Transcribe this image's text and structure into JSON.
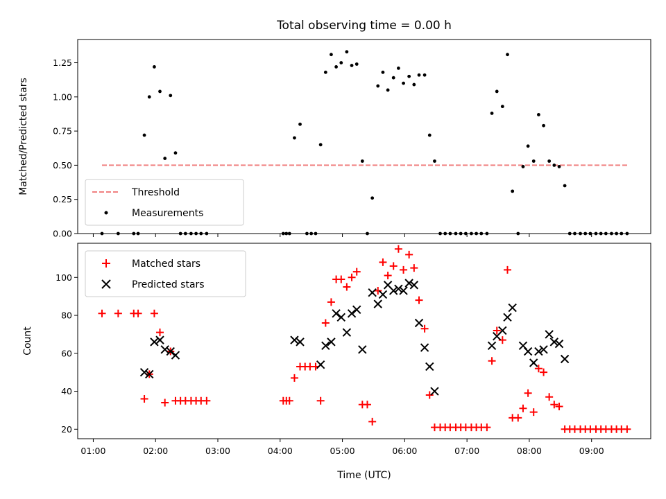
{
  "chart_data": [
    {
      "type": "scatter",
      "title": "Total observing time = 0.00 h",
      "xlabel": "",
      "ylabel": "Matched/Predicted stars",
      "xlim": [
        0.75,
        9.95
      ],
      "ylim": [
        0,
        1.42
      ],
      "yticks": [
        0.0,
        0.25,
        0.5,
        0.75,
        1.0,
        1.25
      ],
      "ytick_labels": [
        "0.00",
        "0.25",
        "0.50",
        "0.75",
        "1.00",
        "1.25"
      ],
      "xticks": [
        1,
        2,
        3,
        4,
        5,
        6,
        7,
        8,
        9
      ],
      "xtick_labels": [
        "",
        "",
        "",
        "",
        "",
        "",
        "",
        "",
        ""
      ],
      "legend_position": "lower-left",
      "threshold": {
        "name": "Threshold",
        "color": "#f08080",
        "y": 0.5,
        "x_range": [
          1.14,
          9.6
        ]
      },
      "series": [
        {
          "name": "Measurements",
          "marker": "dot",
          "color": "#000000",
          "x": [
            1.14,
            1.4,
            1.65,
            1.72,
            1.82,
            1.9,
            1.98,
            2.07,
            2.15,
            2.24,
            2.32,
            2.4,
            2.48,
            2.57,
            2.65,
            2.73,
            2.82,
            4.05,
            4.1,
            4.15,
            4.23,
            4.32,
            4.43,
            4.5,
            4.57,
            4.65,
            4.73,
            4.82,
            4.9,
            4.98,
            5.07,
            5.15,
            5.23,
            5.32,
            5.4,
            5.48,
            5.57,
            5.65,
            5.73,
            5.82,
            5.9,
            5.98,
            6.07,
            6.15,
            6.23,
            6.32,
            6.4,
            6.48,
            6.57,
            6.65,
            6.73,
            6.82,
            6.9,
            6.98,
            7.07,
            7.15,
            7.23,
            7.32,
            7.4,
            7.48,
            7.57,
            7.65,
            7.73,
            7.82,
            7.9,
            7.98,
            8.07,
            8.15,
            8.23,
            8.32,
            8.4,
            8.48,
            8.57,
            8.65,
            8.73,
            8.82,
            8.9,
            8.98,
            9.07,
            9.15,
            9.23,
            9.32,
            9.4,
            9.48,
            9.57
          ],
          "y": [
            0.0,
            0.0,
            0.0,
            0.0,
            0.72,
            1.0,
            1.22,
            1.04,
            0.55,
            1.01,
            0.59,
            0.0,
            0.0,
            0.0,
            0.0,
            0.0,
            0.0,
            0.0,
            0.0,
            0.0,
            0.7,
            0.8,
            0.0,
            0.0,
            0.0,
            0.65,
            1.18,
            1.31,
            1.22,
            1.25,
            1.33,
            1.23,
            1.24,
            0.53,
            0.0,
            0.26,
            1.08,
            1.18,
            1.05,
            1.14,
            1.21,
            1.1,
            1.15,
            1.09,
            1.16,
            1.16,
            0.72,
            0.53,
            0.0,
            0.0,
            0.0,
            0.0,
            0.0,
            0.0,
            0.0,
            0.0,
            0.0,
            0.0,
            0.88,
            1.04,
            0.93,
            1.31,
            0.31,
            0.0,
            0.49,
            0.64,
            0.53,
            0.87,
            0.79,
            0.53,
            0.5,
            0.49,
            0.35,
            0.0,
            0.0,
            0.0,
            0.0,
            0.0,
            0.0,
            0.0,
            0.0,
            0.0,
            0.0,
            0.0,
            0.0
          ]
        }
      ]
    },
    {
      "type": "scatter",
      "title": "",
      "xlabel": "Time (UTC)",
      "ylabel": "Count",
      "xlim": [
        0.75,
        9.95
      ],
      "ylim": [
        15,
        118
      ],
      "yticks": [
        20,
        40,
        60,
        80,
        100
      ],
      "ytick_labels": [
        "20",
        "40",
        "60",
        "80",
        "100"
      ],
      "xticks": [
        1,
        2,
        3,
        4,
        5,
        6,
        7,
        8,
        9
      ],
      "xtick_labels": [
        "01:00",
        "02:00",
        "03:00",
        "04:00",
        "05:00",
        "06:00",
        "07:00",
        "08:00",
        "09:00"
      ],
      "legend_position": "upper-left",
      "series": [
        {
          "name": "Matched stars",
          "marker": "plus",
          "color": "#ff0000",
          "x": [
            1.14,
            1.4,
            1.65,
            1.72,
            1.82,
            1.9,
            1.98,
            2.07,
            2.15,
            2.24,
            2.32,
            2.4,
            2.48,
            2.57,
            2.65,
            2.73,
            2.82,
            4.05,
            4.1,
            4.15,
            4.23,
            4.32,
            4.4,
            4.48,
            4.57,
            4.65,
            4.73,
            4.82,
            4.9,
            4.98,
            5.07,
            5.15,
            5.23,
            5.32,
            5.4,
            5.48,
            5.57,
            5.65,
            5.73,
            5.82,
            5.9,
            5.98,
            6.07,
            6.15,
            6.23,
            6.32,
            6.4,
            6.48,
            6.57,
            6.65,
            6.73,
            6.82,
            6.9,
            6.98,
            7.07,
            7.15,
            7.23,
            7.32,
            7.4,
            7.48,
            7.57,
            7.65,
            7.73,
            7.82,
            7.9,
            7.98,
            8.07,
            8.15,
            8.23,
            8.32,
            8.4,
            8.48,
            8.57,
            8.65,
            8.73,
            8.82,
            8.9,
            8.98,
            9.07,
            9.15,
            9.23,
            9.32,
            9.4,
            9.48,
            9.57
          ],
          "y": [
            81,
            81,
            81,
            81,
            36,
            49,
            81,
            71,
            34,
            61,
            35,
            35,
            35,
            35,
            35,
            35,
            35,
            35,
            35,
            35,
            47,
            53,
            53,
            53,
            53,
            35,
            76,
            87,
            99,
            99,
            95,
            100,
            103,
            33,
            33,
            24,
            93,
            108,
            101,
            106,
            115,
            104,
            112,
            105,
            88,
            73,
            38,
            21,
            21,
            21,
            21,
            21,
            21,
            21,
            21,
            21,
            21,
            21,
            56,
            72,
            67,
            104,
            26,
            26,
            31,
            39,
            29,
            52,
            50,
            37,
            33,
            32,
            20,
            20,
            20,
            20,
            20,
            20,
            20,
            20,
            20,
            20,
            20,
            20,
            20
          ]
        },
        {
          "name": "Predicted stars",
          "marker": "x",
          "color": "#000000",
          "x": [
            1.82,
            1.9,
            1.98,
            2.07,
            2.15,
            2.24,
            2.32,
            4.23,
            4.32,
            4.65,
            4.73,
            4.82,
            4.9,
            4.98,
            5.07,
            5.15,
            5.23,
            5.32,
            5.48,
            5.57,
            5.65,
            5.73,
            5.82,
            5.9,
            5.98,
            6.07,
            6.15,
            6.23,
            6.32,
            6.4,
            6.48,
            7.4,
            7.48,
            7.57,
            7.65,
            7.73,
            7.9,
            7.98,
            8.07,
            8.15,
            8.23,
            8.32,
            8.4,
            8.48,
            8.57
          ],
          "y": [
            50,
            49,
            66,
            67,
            62,
            61,
            59,
            67,
            66,
            54,
            64,
            66,
            81,
            79,
            71,
            81,
            83,
            62,
            92,
            86,
            91,
            96,
            93,
            94,
            93,
            97,
            96,
            76,
            63,
            53,
            40,
            64,
            69,
            72,
            79,
            84,
            64,
            61,
            55,
            61,
            62,
            70,
            66,
            65,
            57
          ]
        }
      ]
    }
  ]
}
